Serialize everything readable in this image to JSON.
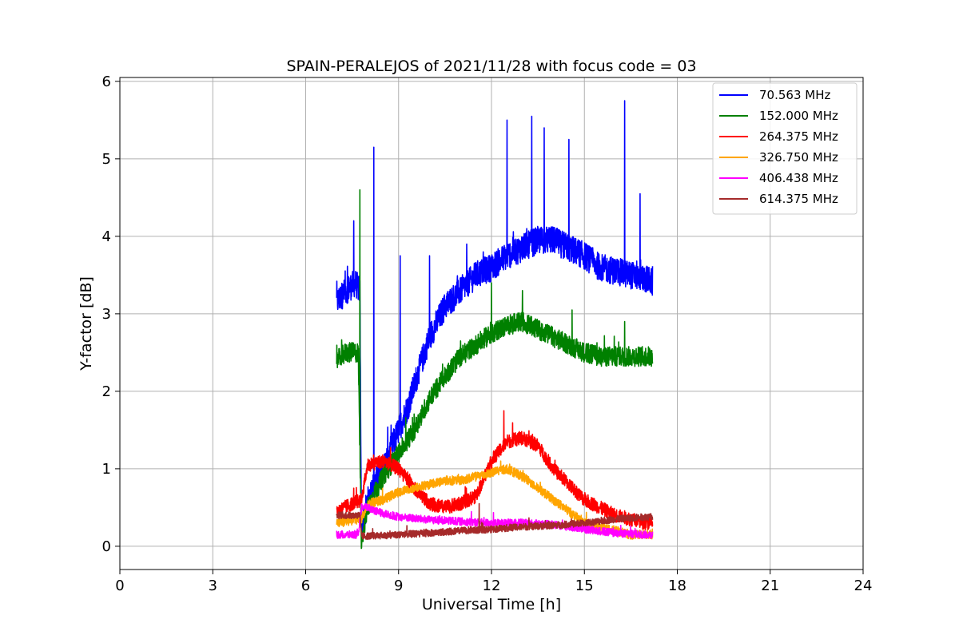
{
  "chart_data": {
    "type": "line",
    "title": "SPAIN-PERALEJOS of 2021/11/28 with focus code = 03",
    "xlabel": "Universal Time [h]",
    "ylabel": "Y-factor [dB]",
    "xlim": [
      0,
      24
    ],
    "ylim": [
      -0.3,
      6.05
    ],
    "xticks": [
      0,
      3,
      6,
      9,
      12,
      15,
      18,
      21,
      24
    ],
    "xtick_labels": [
      "0",
      "3",
      "6",
      "9",
      "12",
      "15",
      "18",
      "21",
      "24"
    ],
    "yticks": [
      0,
      1,
      2,
      3,
      4,
      5,
      6
    ],
    "ytick_labels": [
      "0",
      "1",
      "2",
      "3",
      "4",
      "5",
      "6"
    ],
    "grid": true,
    "legend_position": "top-right",
    "series": [
      {
        "name": "70.563 MHz",
        "color": "#0000ff",
        "noise": 0.18,
        "x": [
          7.0,
          7.3,
          7.6,
          7.75,
          7.8,
          8.0,
          8.2,
          8.5,
          8.8,
          9.0,
          9.3,
          9.6,
          10.0,
          10.5,
          11.0,
          11.5,
          12.0,
          12.5,
          13.0,
          13.5,
          14.0,
          14.5,
          15.0,
          15.5,
          16.0,
          16.5,
          17.0,
          17.2
        ],
        "y": [
          3.15,
          3.3,
          3.4,
          3.3,
          0.2,
          0.6,
          0.8,
          1.0,
          1.3,
          1.5,
          1.8,
          2.2,
          2.7,
          3.1,
          3.3,
          3.5,
          3.6,
          3.75,
          3.85,
          3.95,
          3.95,
          3.85,
          3.75,
          3.6,
          3.55,
          3.5,
          3.45,
          3.4
        ],
        "spikes": [
          [
            7.55,
            4.2
          ],
          [
            8.2,
            5.15
          ],
          [
            9.05,
            3.75
          ],
          [
            10.0,
            3.75
          ],
          [
            11.2,
            3.9
          ],
          [
            12.5,
            5.5
          ],
          [
            13.3,
            5.55
          ],
          [
            13.7,
            5.4
          ],
          [
            14.5,
            5.25
          ],
          [
            16.3,
            5.75
          ],
          [
            16.8,
            4.55
          ]
        ]
      },
      {
        "name": "152.000 MHz",
        "color": "#008000",
        "noise": 0.13,
        "x": [
          7.0,
          7.3,
          7.7,
          7.8,
          8.0,
          8.5,
          9.0,
          9.5,
          10.0,
          10.5,
          11.0,
          11.5,
          12.0,
          12.5,
          13.0,
          13.5,
          14.0,
          14.5,
          15.0,
          15.5,
          16.0,
          16.5,
          17.0,
          17.2
        ],
        "y": [
          2.4,
          2.5,
          2.5,
          0.05,
          0.5,
          0.9,
          1.2,
          1.5,
          1.9,
          2.2,
          2.45,
          2.6,
          2.75,
          2.85,
          2.9,
          2.8,
          2.7,
          2.6,
          2.5,
          2.45,
          2.45,
          2.45,
          2.45,
          2.45
        ],
        "spikes": [
          [
            7.75,
            4.6
          ],
          [
            12.0,
            3.4
          ],
          [
            13.0,
            3.3
          ],
          [
            14.6,
            3.05
          ],
          [
            16.3,
            2.9
          ]
        ]
      },
      {
        "name": "264.375 MHz",
        "color": "#ff0000",
        "noise": 0.09,
        "x": [
          7.0,
          7.5,
          7.8,
          8.0,
          8.5,
          9.0,
          9.5,
          10.0,
          10.5,
          11.0,
          11.5,
          12.0,
          12.5,
          13.0,
          13.5,
          14.0,
          14.5,
          15.0,
          15.5,
          16.0,
          16.5,
          17.0,
          17.2
        ],
        "y": [
          0.45,
          0.55,
          0.6,
          1.05,
          1.1,
          1.0,
          0.75,
          0.55,
          0.5,
          0.55,
          0.65,
          1.1,
          1.35,
          1.4,
          1.3,
          1.0,
          0.8,
          0.6,
          0.5,
          0.4,
          0.35,
          0.3,
          0.3
        ],
        "spikes": [
          [
            12.4,
            1.75
          ],
          [
            7.55,
            0.75
          ]
        ]
      },
      {
        "name": "326.750 MHz",
        "color": "#ffa500",
        "noise": 0.06,
        "x": [
          7.0,
          7.8,
          8.0,
          8.5,
          9.0,
          9.5,
          10.0,
          10.5,
          11.0,
          11.5,
          12.0,
          12.5,
          13.0,
          13.5,
          14.0,
          14.5,
          15.0,
          15.5,
          16.0,
          16.5,
          17.0,
          17.2
        ],
        "y": [
          0.3,
          0.35,
          0.55,
          0.6,
          0.7,
          0.75,
          0.8,
          0.85,
          0.85,
          0.9,
          0.95,
          1.0,
          0.9,
          0.75,
          0.6,
          0.45,
          0.3,
          0.25,
          0.2,
          0.15,
          0.15,
          0.15
        ],
        "spikes": [
          [
            12.3,
            1.1
          ]
        ]
      },
      {
        "name": "406.438 MHz",
        "color": "#ff00ff",
        "noise": 0.05,
        "x": [
          7.0,
          7.7,
          7.8,
          8.0,
          8.5,
          9.0,
          10.0,
          11.0,
          12.0,
          13.0,
          14.0,
          15.0,
          16.0,
          17.0,
          17.2
        ],
        "y": [
          0.15,
          0.15,
          0.5,
          0.5,
          0.42,
          0.38,
          0.34,
          0.32,
          0.3,
          0.3,
          0.28,
          0.22,
          0.17,
          0.15,
          0.15
        ],
        "spikes": []
      },
      {
        "name": "614.375 MHz",
        "color": "#a52a2a",
        "noise": 0.045,
        "x": [
          7.0,
          7.75,
          7.8,
          8.5,
          9.0,
          10.0,
          11.0,
          12.0,
          13.0,
          14.0,
          15.0,
          16.0,
          17.0,
          17.2
        ],
        "y": [
          0.4,
          0.4,
          0.13,
          0.14,
          0.15,
          0.17,
          0.2,
          0.22,
          0.25,
          0.27,
          0.3,
          0.35,
          0.38,
          0.38
        ],
        "spikes": [
          [
            11.6,
            0.55
          ]
        ]
      }
    ]
  }
}
